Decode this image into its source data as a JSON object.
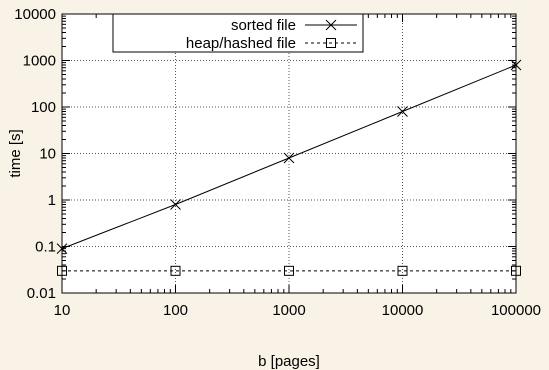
{
  "colors": {
    "background": "#f8f3e6",
    "plot_area": "#ffffff",
    "ink": "#000000",
    "grid": "#555555"
  },
  "chart_data": {
    "type": "line",
    "title": "",
    "xlabel": "b [pages]",
    "ylabel": "time [s]",
    "xscale": "log",
    "yscale": "log",
    "xlim": [
      10,
      100000
    ],
    "ylim": [
      0.01,
      10000
    ],
    "grid": true,
    "legend_position": "top-left",
    "x_ticks": [
      "10",
      "100",
      "1000",
      "10000",
      "100000"
    ],
    "y_ticks": [
      "0.01",
      "0.1",
      "1",
      "10",
      "100",
      "1000",
      "10000"
    ],
    "x": [
      10,
      100,
      1000,
      10000,
      100000
    ],
    "series": [
      {
        "name": "sorted file",
        "marker": "cross",
        "line_style": "solid",
        "values": [
          0.09,
          0.8,
          8,
          80,
          800
        ]
      },
      {
        "name": "heap/hashed file",
        "marker": "square",
        "line_style": "dashed",
        "values": [
          0.03,
          0.03,
          0.03,
          0.03,
          0.03
        ]
      }
    ]
  }
}
